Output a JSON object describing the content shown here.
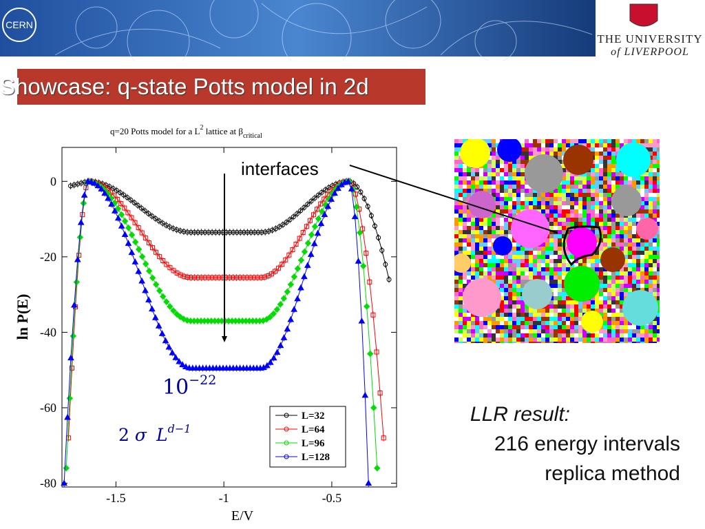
{
  "banner": {
    "left_logo": "CERN",
    "right_logo_line1": "THE UNIVERSITY",
    "right_logo_line2": "of LIVERPOOL"
  },
  "title": "Showcase: q-state Potts model in 2d",
  "chart_data": {
    "type": "line",
    "title_prefix": "q=20 Potts model for a  L",
    "title_sup": "2",
    "title_mid": " lattice at β",
    "title_sub": "critical",
    "xlabel": "E/V",
    "ylabel": "ln P(E)",
    "xlim": [
      -1.75,
      -0.2
    ],
    "ylim": [
      -81,
      9
    ],
    "xticks": [
      "-1.5",
      "-1",
      "-0.5"
    ],
    "xtick_values": [
      -1.5,
      -1.0,
      -0.5
    ],
    "yticks": [
      "0",
      "-20",
      "-40",
      "-60",
      "-80"
    ],
    "ytick_values": [
      0,
      -20,
      -40,
      -60,
      -80
    ],
    "series": [
      {
        "name": "L=32",
        "color": "#000000",
        "marker": "circle",
        "plateau": -13.5,
        "left_x": -1.71,
        "right_x": -0.235,
        "right_min": -26
      },
      {
        "name": "L=64",
        "color": "#ff0000",
        "marker": "square",
        "plateau": -25.5,
        "left_x": -1.72,
        "right_x": -0.26,
        "right_min": -68
      },
      {
        "name": "L=96",
        "color": "#00dd00",
        "marker": "diamond",
        "plateau": -37.0,
        "left_x": -1.73,
        "right_x": -0.29,
        "right_min": -76
      },
      {
        "name": "L=128",
        "color": "#0000ff",
        "marker": "triangle",
        "plateau": -49.5,
        "left_x": -1.74,
        "right_x": -0.33,
        "right_min": -80
      }
    ],
    "annotations": {
      "interfaces": "interfaces",
      "prob": "10",
      "prob_exp": "−22",
      "surface_coeff": "2",
      "surface_sigma": "σ",
      "surface_L": "L",
      "surface_exp": "d−1"
    }
  },
  "notes": {
    "line1": "LLR result:",
    "line2": "216 energy intervals",
    "line3": "replica method"
  }
}
